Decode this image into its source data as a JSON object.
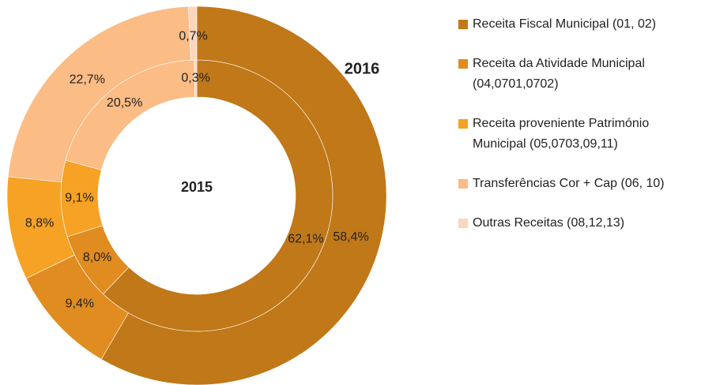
{
  "chart_data": {
    "type": "donut",
    "categories": [
      "Receita Fiscal Municipal (01, 02)",
      "Receita da Atividade Municipal (04,0701,0702)",
      "Receita proveniente Património Municipal (05,0703,09,11)",
      "Transferências Cor + Cap (06, 10)",
      "Outras Receitas (08,12,13)"
    ],
    "colors": [
      "#c07818",
      "#e08c20",
      "#f5a225",
      "#fbbc85",
      "#fcd6bd"
    ],
    "series": [
      {
        "name": "2015",
        "color": "#fbbc85",
        "values": [
          62.1,
          8.0,
          9.1,
          20.5,
          0.3
        ],
        "value_labels": [
          "62,1%",
          "8,0%",
          "9,1%",
          "20,5%",
          "0,3%"
        ]
      },
      {
        "name": "2016",
        "color": "#c05a10",
        "values": [
          58.4,
          9.4,
          8.8,
          22.7,
          0.7
        ],
        "value_labels": [
          "58,4%",
          "9,4%",
          "8,8%",
          "22,7%",
          "0,7%"
        ]
      }
    ],
    "legend": "right"
  }
}
